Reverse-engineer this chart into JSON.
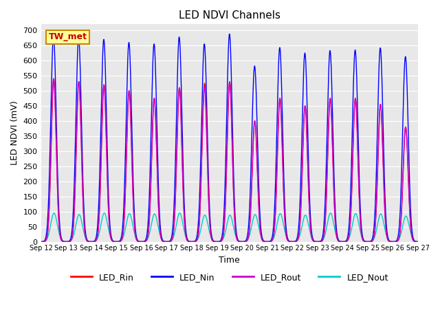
{
  "title": "LED NDVI Channels",
  "xlabel": "Time",
  "ylabel": "LED NDVI (mV)",
  "ylim": [
    0,
    720
  ],
  "annotation_text": "TW_met",
  "annotation_bg": "#ffff99",
  "annotation_border": "#cc8800",
  "background_color": "#e8e8e8",
  "figure_bg": "#ffffff",
  "legend_entries": [
    "LED_Rin",
    "LED_Nin",
    "LED_Rout",
    "LED_Nout"
  ],
  "line_colors": {
    "LED_Rin": "#ff0000",
    "LED_Nin": "#0000ff",
    "LED_Rout": "#cc00cc",
    "LED_Nout": "#00cccc"
  },
  "x_tick_labels": [
    "Sep 12",
    "Sep 13",
    "Sep 14",
    "Sep 15",
    "Sep 16",
    "Sep 17",
    "Sep 18",
    "Sep 19",
    "Sep 20",
    "Sep 21",
    "Sep 22",
    "Sep 23",
    "Sep 24",
    "Sep 25",
    "Sep 26",
    "Sep 27"
  ],
  "peaks": [
    {
      "day": 0,
      "Rin": 540,
      "Nin": 680,
      "Rout": 540,
      "Nout": 95
    },
    {
      "day": 1,
      "Rin": 530,
      "Nin": 675,
      "Rout": 530,
      "Nout": 90
    },
    {
      "day": 2,
      "Rin": 520,
      "Nin": 670,
      "Rout": 520,
      "Nout": 95
    },
    {
      "day": 3,
      "Rin": 500,
      "Nin": 660,
      "Rout": 500,
      "Nout": 93
    },
    {
      "day": 4,
      "Rin": 475,
      "Nin": 655,
      "Rout": 475,
      "Nout": 92
    },
    {
      "day": 5,
      "Rin": 510,
      "Nin": 678,
      "Rout": 510,
      "Nout": 95
    },
    {
      "day": 6,
      "Rin": 525,
      "Nin": 655,
      "Rout": 510,
      "Nout": 88
    },
    {
      "day": 7,
      "Rin": 530,
      "Nin": 688,
      "Rout": 530,
      "Nout": 88
    },
    {
      "day": 8,
      "Rin": 400,
      "Nin": 582,
      "Rout": 400,
      "Nout": 90
    },
    {
      "day": 9,
      "Rin": 475,
      "Nin": 643,
      "Rout": 475,
      "Nout": 93
    },
    {
      "day": 10,
      "Rin": 450,
      "Nin": 625,
      "Rout": 450,
      "Nout": 88
    },
    {
      "day": 11,
      "Rin": 475,
      "Nin": 633,
      "Rout": 475,
      "Nout": 95
    },
    {
      "day": 12,
      "Rin": 475,
      "Nin": 635,
      "Rout": 475,
      "Nout": 93
    },
    {
      "day": 13,
      "Rin": 455,
      "Nin": 642,
      "Rout": 455,
      "Nout": 92
    },
    {
      "day": 14,
      "Rin": 380,
      "Nin": 613,
      "Rout": 380,
      "Nout": 85
    }
  ]
}
